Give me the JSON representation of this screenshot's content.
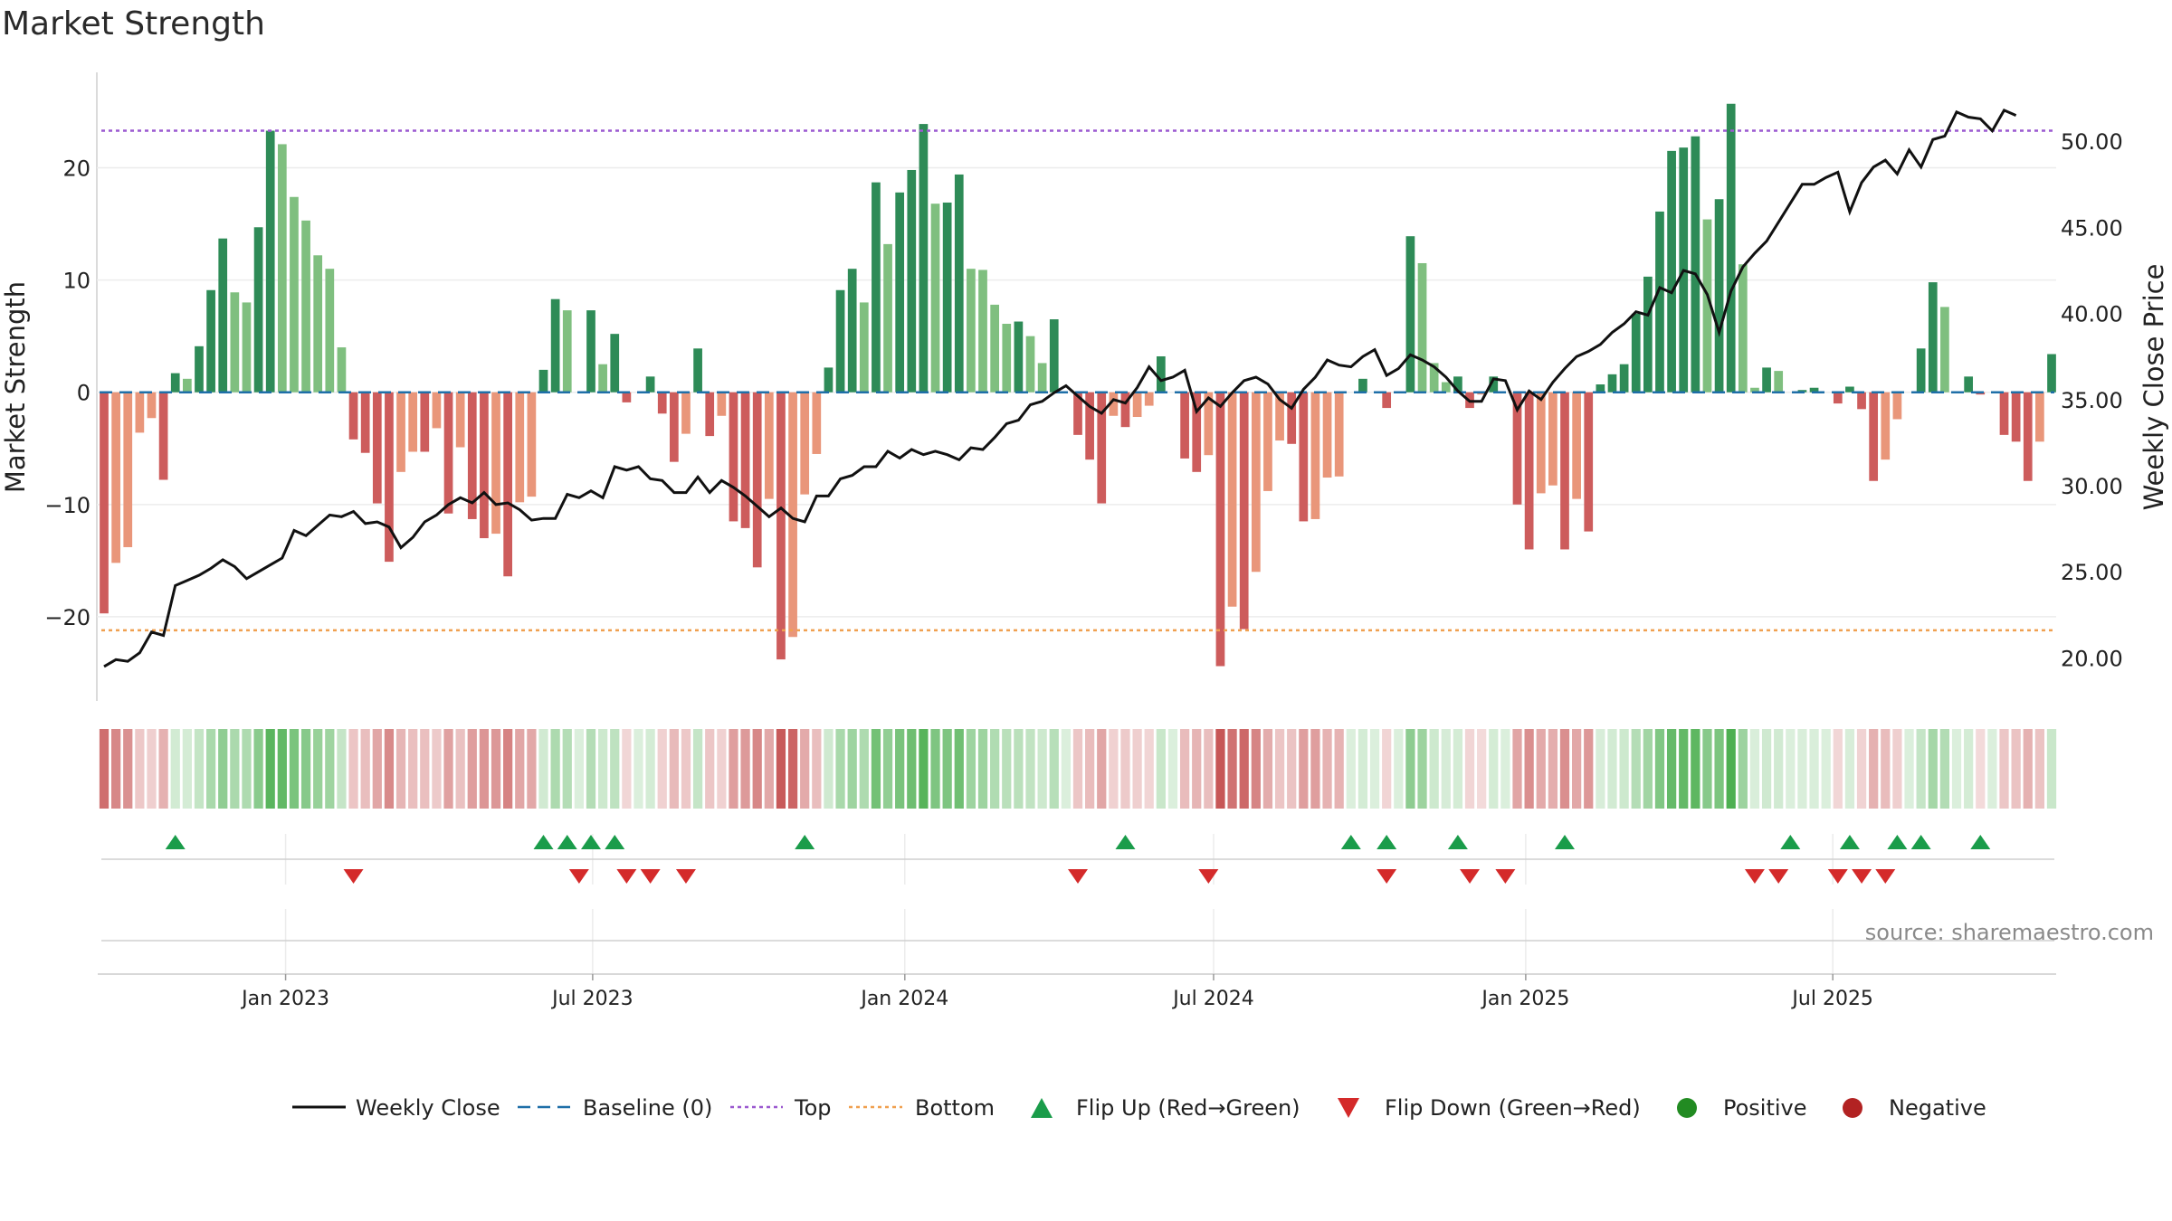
{
  "title": "Market Strength",
  "source": "source: sharemaestro.com",
  "colors": {
    "green_dark": "#2e8b57",
    "green_light": "#7fbf7f",
    "red_dark": "#cd5c5c",
    "red_light": "#e9967a",
    "line": "#111111",
    "baseline": "#1f6fa8",
    "top": "#9b59d0",
    "bottom": "#f0a050",
    "flip_up": "#1a9c4a",
    "flip_down": "#d42a2a",
    "positive": "#228b22",
    "negative": "#b22222"
  },
  "chart_data": {
    "type": "bar+line",
    "title": "Market Strength",
    "ylabel_left": "Market Strength",
    "ylabel_right": "Weekly Close Price",
    "ylim_left": [
      -27.5,
      28.5
    ],
    "ylim_right": [
      17.5,
      54.0
    ],
    "left_ticks": [
      20,
      10,
      0,
      -10,
      -20
    ],
    "left_tick_labels": [
      "20",
      "10",
      "0",
      "−10",
      "−20"
    ],
    "right_ticks": [
      50,
      45,
      40,
      35,
      30,
      25,
      20
    ],
    "right_tick_labels": [
      "50.00",
      "45.00",
      "40.00",
      "35.00",
      "30.00",
      "25.00",
      "20.00"
    ],
    "x_start": "2022-09-16",
    "x_step_days": 7,
    "x_ticks": [
      {
        "label": "Jan 2023",
        "date": "2023-01-01"
      },
      {
        "label": "Jul 2023",
        "date": "2023-07-01"
      },
      {
        "label": "Jan 2024",
        "date": "2024-01-01"
      },
      {
        "label": "Jul 2024",
        "date": "2024-07-01"
      },
      {
        "label": "Jan 2025",
        "date": "2025-01-01"
      },
      {
        "label": "Jul 2025",
        "date": "2025-07-01"
      }
    ],
    "top_level": 23.3,
    "bottom_level": -21.2,
    "strength": [
      -19.7,
      -15.2,
      -13.8,
      -3.6,
      -2.3,
      -7.8,
      1.7,
      1.2,
      4.1,
      9.1,
      13.7,
      8.9,
      8.0,
      14.7,
      23.3,
      22.1,
      17.4,
      15.3,
      12.2,
      11.0,
      4.0,
      -4.2,
      -5.4,
      -9.9,
      -15.1,
      -7.1,
      -5.3,
      -5.3,
      -3.2,
      -10.8,
      -4.9,
      -11.3,
      -13.0,
      -12.6,
      -16.4,
      -9.8,
      -9.3,
      2.0,
      8.3,
      7.3,
      0.0,
      7.3,
      2.5,
      5.2,
      -0.9,
      0.0,
      1.4,
      -1.9,
      -6.2,
      -3.7,
      3.9,
      -3.9,
      -2.1,
      -11.5,
      -12.1,
      -15.6,
      -9.5,
      -23.8,
      -21.8,
      -9.1,
      -5.5,
      2.2,
      9.1,
      11.0,
      8.0,
      18.7,
      13.2,
      17.8,
      19.8,
      23.9,
      16.8,
      16.9,
      19.4,
      11.0,
      10.9,
      7.8,
      6.1,
      6.3,
      5.0,
      2.6,
      6.5,
      0.0,
      -3.8,
      -6.0,
      -9.9,
      -2.1,
      -3.1,
      -2.2,
      -1.2,
      3.2,
      0.0,
      -5.9,
      -7.1,
      -5.6,
      -24.4,
      -19.1,
      -21.1,
      -16.0,
      -8.8,
      -4.3,
      -4.6,
      -11.5,
      -11.3,
      -7.6,
      -7.5,
      0.0,
      1.2,
      0.0,
      -1.4,
      0.0,
      13.9,
      11.5,
      2.6,
      0.9,
      1.4,
      -1.4,
      -0.2,
      1.4,
      0.0,
      -10.0,
      -14.0,
      -9.0,
      -8.3,
      -14.0,
      -9.5,
      -12.4,
      0.7,
      1.6,
      2.5,
      7.0,
      10.3,
      16.1,
      21.5,
      21.8,
      22.8,
      15.4,
      17.2,
      25.7,
      11.4,
      0.4,
      2.2,
      1.9,
      0.0,
      0.2,
      0.4,
      0.0,
      -1.0,
      0.5,
      -1.5,
      -7.9,
      -6.0,
      -2.4,
      0.0,
      3.9,
      9.8,
      7.6,
      0.0,
      1.4,
      -0.2,
      0.0,
      -3.8,
      -4.4,
      -7.9,
      -4.4,
      3.4
    ],
    "weekly_close": [
      19.5,
      19.9,
      19.8,
      20.3,
      21.5,
      21.3,
      24.2,
      24.5,
      24.8,
      25.2,
      25.7,
      25.3,
      24.6,
      25.0,
      25.4,
      25.8,
      27.4,
      27.1,
      27.7,
      28.3,
      28.2,
      28.5,
      27.8,
      27.9,
      27.6,
      26.4,
      27.0,
      27.9,
      28.3,
      28.9,
      29.3,
      29.0,
      29.6,
      28.9,
      29.0,
      28.6,
      28.0,
      28.1,
      28.1,
      29.5,
      29.3,
      29.7,
      29.3,
      31.1,
      30.9,
      31.1,
      30.4,
      30.3,
      29.6,
      29.6,
      30.5,
      29.6,
      30.3,
      29.9,
      29.4,
      28.8,
      28.2,
      28.7,
      28.1,
      27.9,
      29.4,
      29.4,
      30.4,
      30.6,
      31.1,
      31.1,
      32.0,
      31.6,
      32.1,
      31.8,
      32.0,
      31.8,
      31.5,
      32.2,
      32.1,
      32.8,
      33.6,
      33.8,
      34.7,
      34.9,
      35.4,
      35.8,
      35.2,
      34.6,
      34.2,
      35.0,
      34.8,
      35.7,
      36.9,
      36.1,
      36.3,
      36.7,
      34.3,
      35.1,
      34.6,
      35.4,
      36.1,
      36.3,
      35.9,
      35.0,
      34.5,
      35.6,
      36.3,
      37.3,
      37.0,
      36.9,
      37.5,
      37.9,
      36.4,
      36.8,
      37.6,
      37.3,
      36.9,
      36.3,
      35.5,
      34.9,
      34.9,
      36.2,
      36.1,
      34.4,
      35.5,
      35.0,
      36.0,
      36.8,
      37.5,
      37.8,
      38.2,
      38.9,
      39.4,
      40.1,
      39.9,
      41.5,
      41.2,
      42.5,
      42.3,
      41.1,
      38.9,
      41.3,
      42.7,
      43.5,
      44.2,
      45.3,
      46.4,
      47.5,
      47.5,
      47.9,
      48.2,
      45.9,
      47.6,
      48.5,
      48.9,
      48.1,
      49.5,
      48.5,
      50.1,
      50.3,
      51.7,
      51.4,
      51.3,
      50.6,
      51.8,
      51.5
    ],
    "flip_up_idx": [
      6,
      37,
      39,
      41,
      43,
      59,
      86,
      105,
      108,
      114,
      123,
      142,
      147,
      151,
      153,
      158
    ],
    "flip_down_idx": [
      21,
      40,
      44,
      46,
      49,
      82,
      93,
      108,
      115,
      118,
      139,
      141,
      146,
      148,
      150
    ],
    "series": [
      {
        "name": "Weekly Close"
      },
      {
        "name": "Baseline (0)"
      },
      {
        "name": "Top"
      },
      {
        "name": "Bottom"
      },
      {
        "name": "Flip Up (Red→Green)"
      },
      {
        "name": "Flip Down (Green→Red)"
      },
      {
        "name": "Positive"
      },
      {
        "name": "Negative"
      }
    ],
    "legend_position": "bottom"
  }
}
